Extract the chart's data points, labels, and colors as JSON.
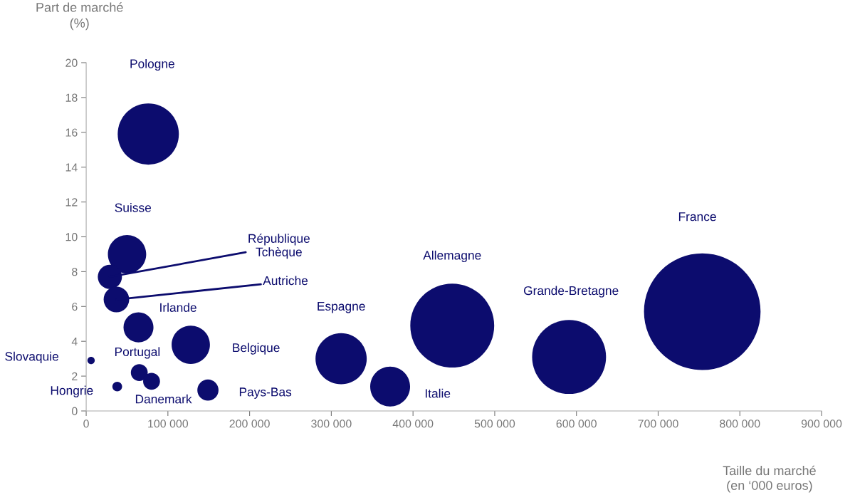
{
  "chart_data": {
    "type": "bubble",
    "xlabel": "Taille du marché\n(en ‘000 euros)",
    "ylabel": "Part de marché\n(%)",
    "xlim": [
      0,
      900000
    ],
    "xticks": [
      0,
      {
        "value": 100000,
        "label": "100 000"
      },
      {
        "value": 200000,
        "label": "200 000"
      },
      {
        "value": 300000,
        "label": "300 000"
      },
      {
        "value": 400000,
        "label": "400 000"
      },
      {
        "value": 500000,
        "label": "500 000"
      },
      {
        "value": 600000,
        "label": "600 000"
      },
      {
        "value": 700000,
        "label": "700 000"
      },
      {
        "value": 800000,
        "label": "800 000"
      },
      {
        "value": 900000,
        "label": "900 000"
      }
    ],
    "ylim": [
      0,
      20
    ],
    "yticks": [
      0,
      2,
      4,
      6,
      8,
      10,
      12,
      14,
      16,
      18,
      20
    ],
    "grid": false,
    "series": [
      {
        "name": "Pologne",
        "color": "#0c0c6e",
        "x": [
          76000
        ],
        "values": [
          15.9
        ],
        "sizes": [
          0.275
        ]
      },
      {
        "name": "Suisse",
        "color": "#0c0c6e",
        "x": [
          50000
        ],
        "values": [
          9.0
        ],
        "sizes": [
          0.108
        ]
      },
      {
        "name": "République\nTchèque",
        "color": "#0c0c6e",
        "x": [
          29000
        ],
        "values": [
          7.7
        ],
        "sizes": [
          0.043
        ]
      },
      {
        "name": "Autriche",
        "color": "#0c0c6e",
        "x": [
          37000
        ],
        "values": [
          6.4
        ],
        "sizes": [
          0.048
        ]
      },
      {
        "name": "Irlande",
        "color": "#0c0c6e",
        "x": [
          64000
        ],
        "values": [
          4.8
        ],
        "sizes": [
          0.066
        ]
      },
      {
        "name": "Belgique",
        "color": "#0c0c6e",
        "x": [
          128000
        ],
        "values": [
          3.8
        ],
        "sizes": [
          0.108
        ]
      },
      {
        "name": "Slovaquie",
        "color": "#0c0c6e",
        "x": [
          6000
        ],
        "values": [
          2.9
        ],
        "sizes": [
          0.004
        ]
      },
      {
        "name": "Portugal",
        "color": "#0c0c6e",
        "x": [
          65000
        ],
        "values": [
          2.2
        ],
        "sizes": [
          0.021
        ]
      },
      {
        "name": "Hongrie",
        "color": "#0c0c6e",
        "x": [
          38000
        ],
        "values": [
          1.4
        ],
        "sizes": [
          0.007
        ]
      },
      {
        "name": "Danemark",
        "color": "#0c0c6e",
        "x": [
          80000
        ],
        "values": [
          1.7
        ],
        "sizes": [
          0.021
        ]
      },
      {
        "name": "Pays-Bas",
        "color": "#0c0c6e",
        "x": [
          149000
        ],
        "values": [
          1.2
        ],
        "sizes": [
          0.033
        ]
      },
      {
        "name": "Espagne",
        "color": "#0c0c6e",
        "x": [
          312000
        ],
        "values": [
          3.0
        ],
        "sizes": [
          0.193
        ]
      },
      {
        "name": "Italie",
        "color": "#0c0c6e",
        "x": [
          372000
        ],
        "values": [
          1.4
        ],
        "sizes": [
          0.117
        ]
      },
      {
        "name": "Allemagne",
        "color": "#0c0c6e",
        "x": [
          448000
        ],
        "values": [
          4.9
        ],
        "sizes": [
          0.518
        ]
      },
      {
        "name": "Grande-Bretagne",
        "color": "#0c0c6e",
        "x": [
          591000
        ],
        "values": [
          3.1
        ],
        "sizes": [
          0.402
        ]
      },
      {
        "name": "France",
        "color": "#0c0c6e",
        "x": [
          754000
        ],
        "values": [
          5.7
        ],
        "sizes": [
          1.0
        ]
      }
    ]
  }
}
